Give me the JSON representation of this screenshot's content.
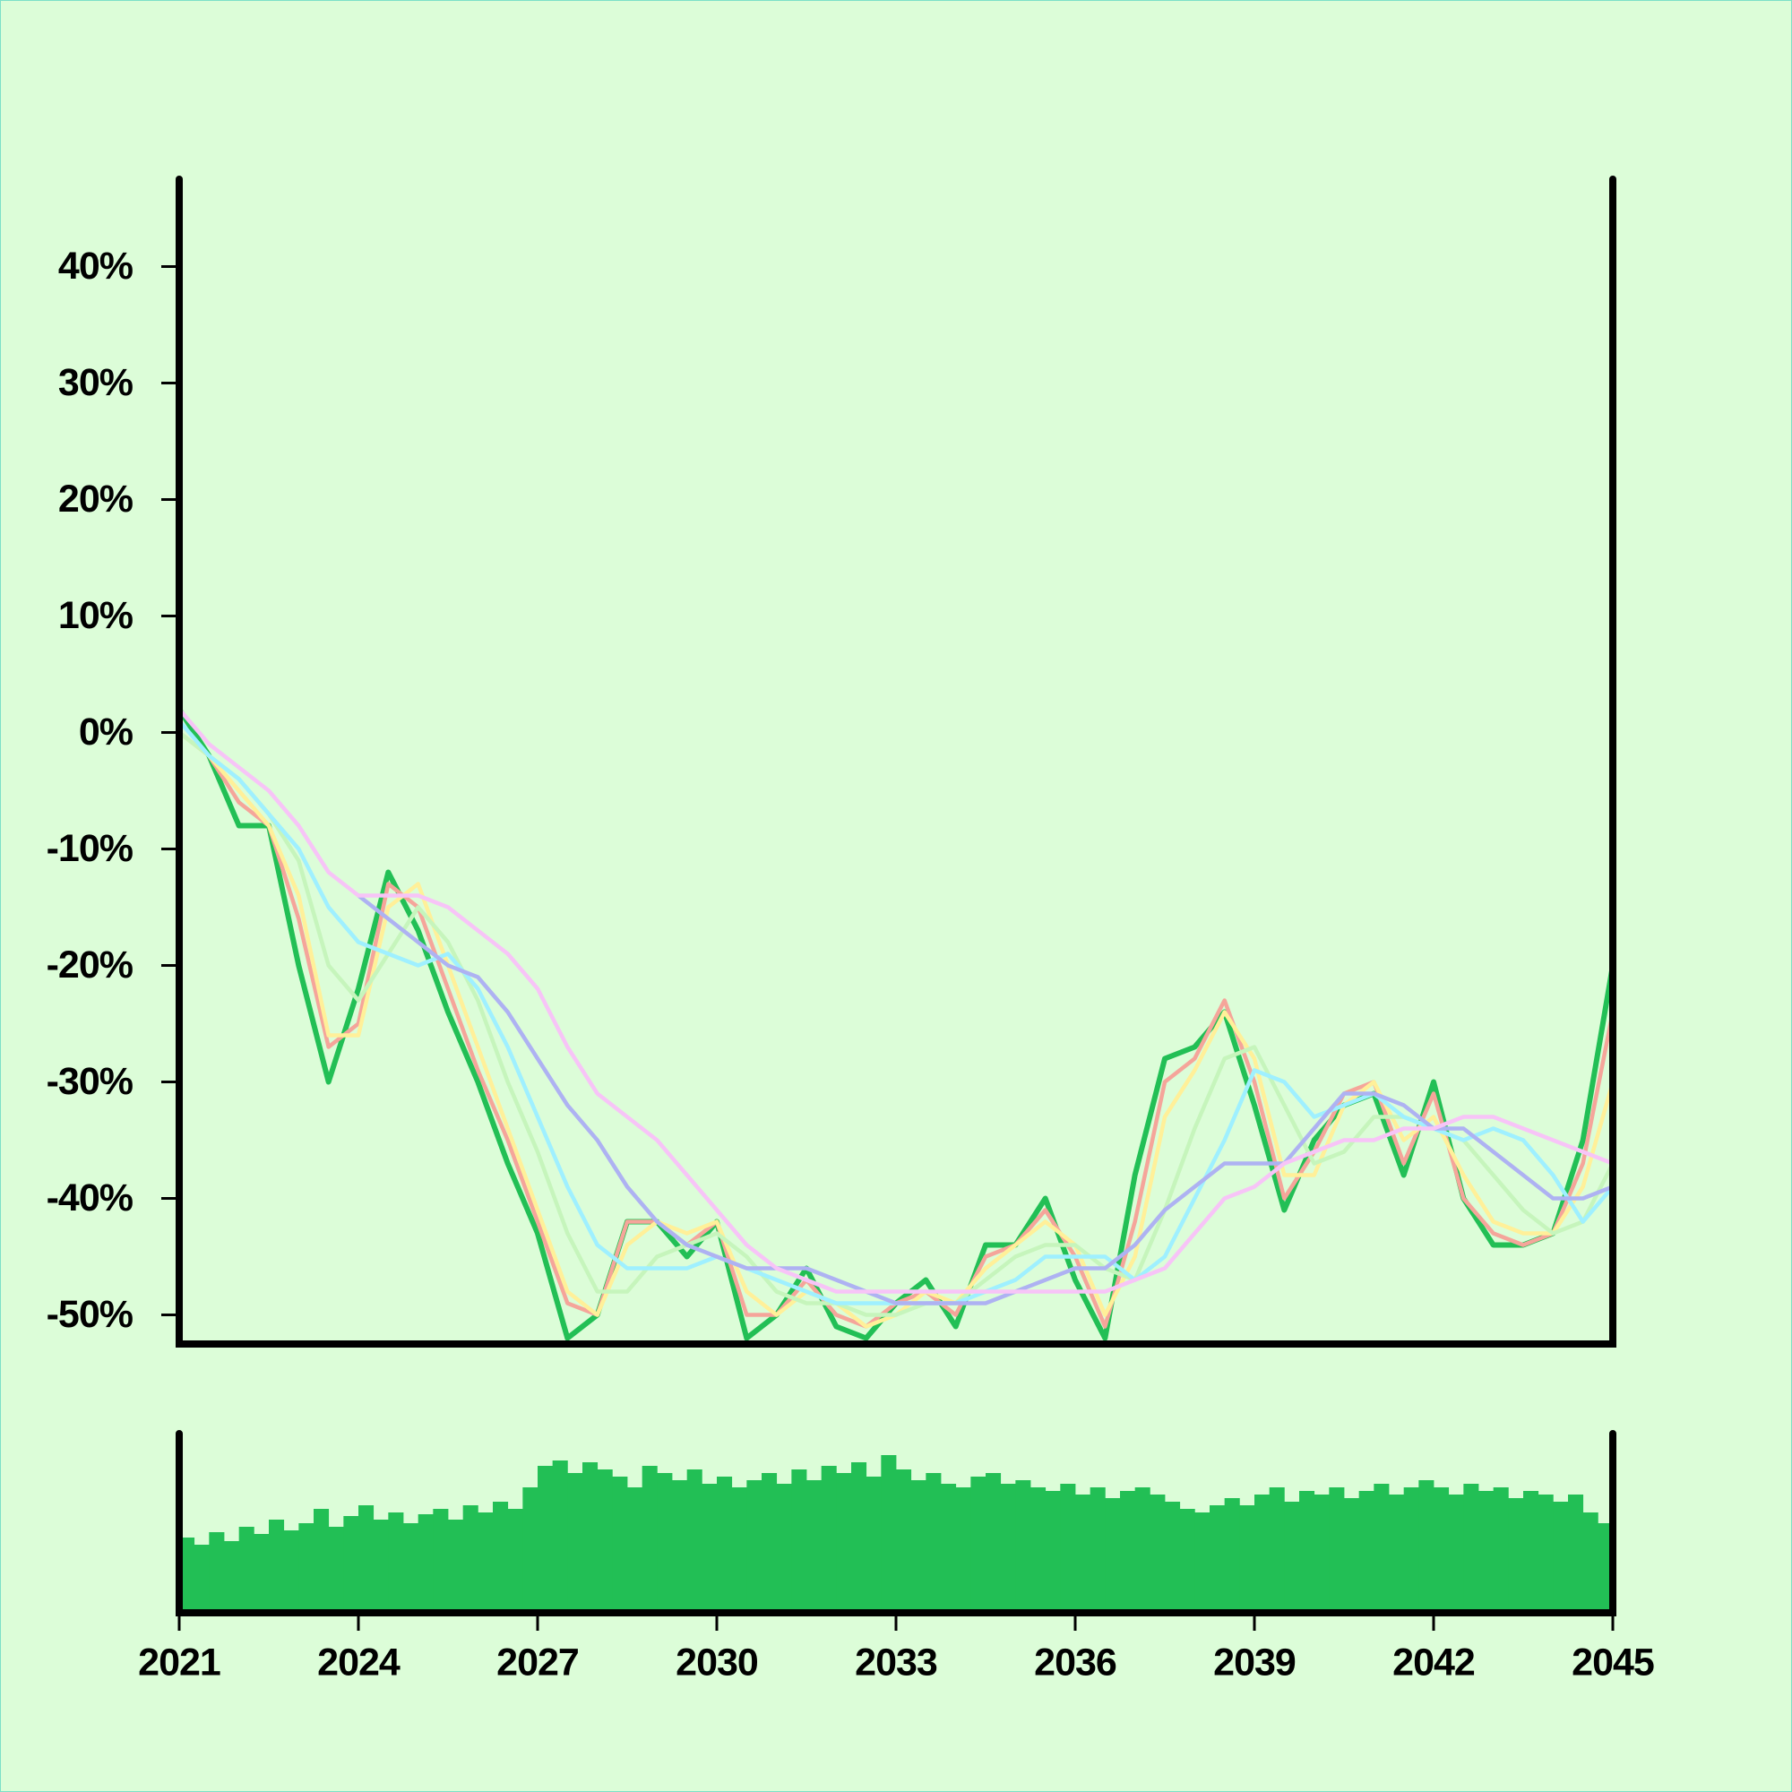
{
  "chart_data": [
    {
      "type": "line",
      "x": [
        2021,
        2021.5,
        2022,
        2022.5,
        2023,
        2023.5,
        2024,
        2024.5,
        2025,
        2025.5,
        2026,
        2026.5,
        2027,
        2027.5,
        2028,
        2028.5,
        2029,
        2029.5,
        2030,
        2030.5,
        2031,
        2031.5,
        2032,
        2032.5,
        2033,
        2033.5,
        2034,
        2034.5,
        2035,
        2035.5,
        2036,
        2036.5,
        2037,
        2037.5,
        2038,
        2038.5,
        2039,
        2039.5,
        2040,
        2040.5,
        2041,
        2041.5,
        2042,
        2042.5,
        2043,
        2043.5,
        2044,
        2044.5,
        2045
      ],
      "xlim": [
        2021,
        2045
      ],
      "ylim": [
        -52.5,
        47.5
      ],
      "yticks": [
        {
          "value": 40,
          "label": "40%"
        },
        {
          "value": 30,
          "label": "30%"
        },
        {
          "value": 20,
          "label": "20%"
        },
        {
          "value": 10,
          "label": "10%"
        },
        {
          "value": 0,
          "label": "0%"
        },
        {
          "value": -10,
          "label": "-10%"
        },
        {
          "value": -20,
          "label": "-20%"
        },
        {
          "value": -30,
          "label": "-30%"
        },
        {
          "value": -40,
          "label": "-40%"
        },
        {
          "value": -50,
          "label": "-50%"
        }
      ],
      "series": [
        {
          "color": "#22bf55",
          "values": [
            2,
            -2,
            -8,
            -8,
            -20,
            -30,
            -22,
            -12,
            -17,
            -24,
            -30,
            -37,
            -43,
            -52,
            -50,
            -42,
            -42,
            -45,
            -42,
            -52,
            -50,
            -46,
            -51,
            -52,
            -49,
            -47,
            -51,
            -44,
            -44,
            -40,
            -47,
            -52,
            -38,
            -28,
            -27,
            -24,
            -32,
            -41,
            -35,
            -32,
            -31,
            -38,
            -30,
            -40,
            -44,
            -44,
            -43,
            -35,
            -20
          ]
        },
        {
          "color": "#f5a59a",
          "values": [
            0,
            -2,
            -6,
            -8,
            -16,
            -27,
            -25,
            -13,
            -15,
            -22,
            -29,
            -35,
            -42,
            -49,
            -50,
            -42,
            -42,
            -44,
            -42,
            -50,
            -50,
            -47,
            -50,
            -51,
            -49,
            -48,
            -50,
            -45,
            -44,
            -41,
            -45,
            -51,
            -42,
            -30,
            -28,
            -23,
            -30,
            -40,
            -36,
            -31,
            -30,
            -37,
            -31,
            -40,
            -43,
            -44,
            -43,
            -37,
            -24
          ]
        },
        {
          "color": "#fff099",
          "values": [
            0,
            -2,
            -5,
            -8,
            -14,
            -26,
            -26,
            -15,
            -13,
            -20,
            -27,
            -34,
            -41,
            -48,
            -50,
            -44,
            -42,
            -43,
            -42,
            -48,
            -50,
            -48,
            -49,
            -51,
            -50,
            -48,
            -49,
            -46,
            -44,
            -42,
            -44,
            -50,
            -45,
            -33,
            -29,
            -24,
            -28,
            -38,
            -38,
            -32,
            -30,
            -35,
            -33,
            -38,
            -42,
            -43,
            -43,
            -39,
            -30
          ]
        },
        {
          "color": "#c6f5bc",
          "values": [
            0,
            -2,
            -4,
            -7,
            -11,
            -20,
            -23,
            -19,
            -15,
            -18,
            -23,
            -30,
            -36,
            -43,
            -48,
            -48,
            -45,
            -44,
            -43,
            -45,
            -48,
            -49,
            -49,
            -50,
            -50,
            -49,
            -49,
            -47,
            -45,
            -44,
            -44,
            -46,
            -47,
            -41,
            -34,
            -28,
            -27,
            -32,
            -37,
            -36,
            -33,
            -33,
            -34,
            -35,
            -38,
            -41,
            -43,
            -42,
            -37
          ]
        },
        {
          "color": "#9ff0ff",
          "values": [
            1,
            -2,
            -4,
            -7,
            -10,
            -15,
            -18,
            -19,
            -20,
            -19,
            -22,
            -27,
            -33,
            -39,
            -44,
            -46,
            -46,
            -46,
            -45,
            -46,
            -47,
            -48,
            -49,
            -49,
            -49,
            -49,
            -49,
            -48,
            -47,
            -45,
            -45,
            -45,
            -47,
            -45,
            -40,
            -35,
            -29,
            -30,
            -33,
            -32,
            -31,
            -33,
            -34,
            -35,
            -34,
            -35,
            -38,
            -42,
            -39
          ]
        },
        {
          "color": "#aeb2f2",
          "values": [
            null,
            null,
            null,
            null,
            null,
            null,
            -14,
            -16,
            -18,
            -20,
            -21,
            -24,
            -28,
            -32,
            -35,
            -39,
            -42,
            -44,
            -45,
            -46,
            -46,
            -46,
            -47,
            -48,
            -49,
            -49,
            -49,
            -49,
            -48,
            -47,
            -46,
            -46,
            -44,
            -41,
            -39,
            -37,
            -37,
            -37,
            -34,
            -31,
            -31,
            -32,
            -34,
            -34,
            -36,
            -38,
            -40,
            -40,
            -39
          ]
        },
        {
          "color": "#f7c4f7",
          "values": [
            2,
            -1,
            -3,
            -5,
            -8,
            -12,
            -14,
            -14,
            -14,
            -15,
            -17,
            -19,
            -22,
            -27,
            -31,
            -33,
            -35,
            -38,
            -41,
            -44,
            -46,
            -47,
            -48,
            -48,
            -48,
            -48,
            -48,
            -48,
            -48,
            -48,
            -48,
            -48,
            -47,
            -46,
            -43,
            -40,
            -39,
            -37,
            -36,
            -35,
            -35,
            -34,
            -34,
            -33,
            -33,
            -34,
            -35,
            -36,
            -37
          ]
        }
      ]
    },
    {
      "type": "bar",
      "color": "#22bf55",
      "x": [
        2021,
        2021.25,
        2021.5,
        2021.75,
        2022,
        2022.25,
        2022.5,
        2022.75,
        2023,
        2023.25,
        2023.5,
        2023.75,
        2024,
        2024.25,
        2024.5,
        2024.75,
        2025,
        2025.25,
        2025.5,
        2025.75,
        2026,
        2026.25,
        2026.5,
        2026.75,
        2027,
        2027.25,
        2027.5,
        2027.75,
        2028,
        2028.25,
        2028.5,
        2028.75,
        2029,
        2029.25,
        2029.5,
        2029.75,
        2030,
        2030.25,
        2030.5,
        2030.75,
        2031,
        2031.25,
        2031.5,
        2031.75,
        2032,
        2032.25,
        2032.5,
        2032.75,
        2033,
        2033.25,
        2033.5,
        2033.75,
        2034,
        2034.25,
        2034.5,
        2034.75,
        2035,
        2035.25,
        2035.5,
        2035.75,
        2036,
        2036.25,
        2036.5,
        2036.75,
        2037,
        2037.25,
        2037.5,
        2037.75,
        2038,
        2038.25,
        2038.5,
        2038.75,
        2039,
        2039.25,
        2039.5,
        2039.75,
        2040,
        2040.25,
        2040.5,
        2040.75,
        2041,
        2041.25,
        2041.5,
        2041.75,
        2042,
        2042.25,
        2042.5,
        2042.75,
        2043,
        2043.25,
        2043.5,
        2043.75,
        2044,
        2044.25,
        2044.5,
        2044.75
      ],
      "values": [
        42,
        38,
        45,
        40,
        48,
        44,
        52,
        46,
        50,
        58,
        48,
        54,
        60,
        52,
        56,
        50,
        55,
        58,
        52,
        60,
        56,
        62,
        58,
        70,
        82,
        85,
        78,
        84,
        80,
        76,
        70,
        82,
        78,
        74,
        80,
        72,
        76,
        70,
        74,
        78,
        72,
        80,
        74,
        82,
        78,
        84,
        76,
        88,
        80,
        74,
        78,
        72,
        70,
        76,
        78,
        72,
        74,
        70,
        68,
        72,
        66,
        70,
        64,
        68,
        70,
        66,
        62,
        58,
        56,
        60,
        64,
        60,
        66,
        70,
        62,
        68,
        66,
        70,
        64,
        68,
        72,
        66,
        70,
        74,
        70,
        66,
        72,
        68,
        70,
        64,
        68,
        66,
        62,
        66,
        56,
        50
      ],
      "xlim": [
        2021,
        2045
      ],
      "ylim": [
        0,
        100
      ],
      "xticks": [
        2021,
        2024,
        2027,
        2030,
        2033,
        2036,
        2039,
        2042,
        2045
      ]
    }
  ]
}
